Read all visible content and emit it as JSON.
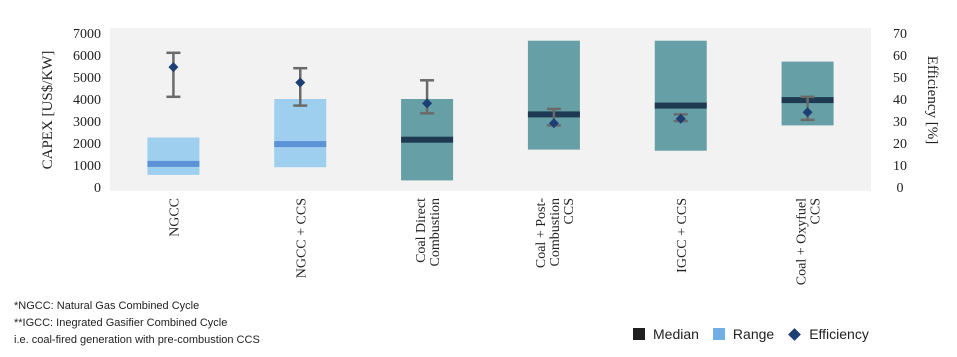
{
  "chart_data": {
    "type": "range-bar",
    "categories": [
      "NGCC",
      "NGCC + CCS",
      "Coal Direct Combustion",
      "Coal + Post-Combustion CCS",
      "IGCC + CCS",
      "Coal + Oxyfuel CCS"
    ],
    "category_lines": [
      [
        "NGCC"
      ],
      [
        "NGCC + CCS"
      ],
      [
        "Coal Direct",
        "Combustion"
      ],
      [
        "Coal + Post-",
        "Combustion",
        "CCS"
      ],
      [
        "IGCC + CCS"
      ],
      [
        "Coal + Oxyfuel",
        "CCS"
      ]
    ],
    "range_color_by_category": [
      "#9fcfef",
      "#9fcfef",
      "#679fa6",
      "#679fa6",
      "#679fa6",
      "#679fa6"
    ],
    "ylabel": "CAPEX [US$/KW]",
    "ylabel2": "Efficiency [%]",
    "ylim": [
      0,
      7000
    ],
    "yticks": [
      0,
      1000,
      2000,
      3000,
      4000,
      5000,
      6000,
      7000
    ],
    "ylim2": [
      0,
      70
    ],
    "yticks2": [
      0,
      10,
      20,
      30,
      40,
      50,
      60,
      70
    ],
    "range": [
      [
        550,
        2250
      ],
      [
        900,
        4000
      ],
      [
        300,
        4000
      ],
      [
        1700,
        6650
      ],
      [
        1650,
        6650
      ],
      [
        2800,
        5700
      ]
    ],
    "median": [
      1050,
      1950,
      2150,
      3300,
      3700,
      3950
    ],
    "efficiency": [
      54.5,
      47.5,
      38,
      29,
      31,
      34
    ],
    "efficiency_error": [
      [
        41,
        61
      ],
      [
        37,
        54
      ],
      [
        33.5,
        48.5
      ],
      [
        28,
        35.5
      ],
      [
        30,
        33
      ],
      [
        30.5,
        41
      ]
    ],
    "legend": [
      {
        "label": "Median",
        "kind": "square",
        "color": "#1f1f1f"
      },
      {
        "label": "Range",
        "kind": "square",
        "color": "#72aee6"
      },
      {
        "label": "Efficiency",
        "kind": "diamond",
        "color": "#1e3f73"
      }
    ],
    "legend_position": "bottom-right",
    "grid": false
  },
  "notes": [
    "*NGCC: Natural Gas Combined Cycle",
    "**IGCC: Inegrated Gasifier Combined Cycle",
    "i.e. coal-fired generation with pre-combustion CCS"
  ],
  "colors": {
    "plot_background": "#f2f2f2",
    "median_line": "#1e3a52",
    "median_line_light": "#5b93d6",
    "errorbar": "#6a6a6a",
    "diamond": "#1e3f73"
  }
}
